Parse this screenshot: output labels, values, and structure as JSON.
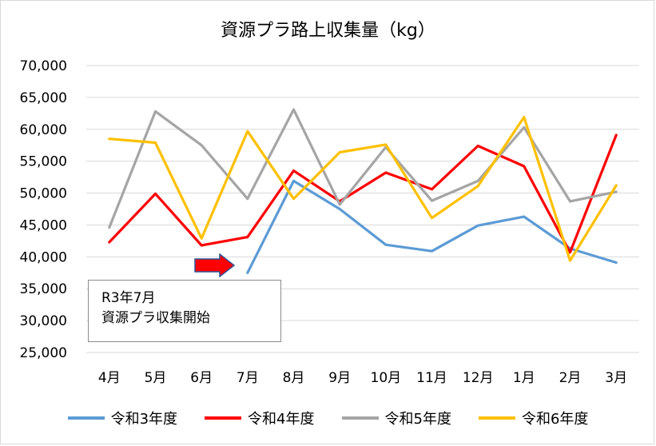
{
  "chart_data": {
    "type": "line",
    "title": "資源プラ路上収集量（kg）",
    "xlabel": "",
    "ylabel": "",
    "categories": [
      "4月",
      "5月",
      "6月",
      "7月",
      "8月",
      "9月",
      "10月",
      "11月",
      "12月",
      "1月",
      "2月",
      "3月"
    ],
    "ylim": [
      25000,
      70000
    ],
    "yticks": [
      25000,
      30000,
      35000,
      40000,
      45000,
      50000,
      55000,
      60000,
      65000,
      70000
    ],
    "ytick_labels": [
      "25,000",
      "30,000",
      "35,000",
      "40,000",
      "45,000",
      "50,000",
      "55,000",
      "60,000",
      "65,000",
      "70,000"
    ],
    "grid": true,
    "legend_position": "bottom",
    "series": [
      {
        "name": "令和3年度",
        "color": "#5b9bd5",
        "values": [
          null,
          null,
          null,
          37500,
          51900,
          47500,
          41900,
          40900,
          44900,
          46300,
          41300,
          39100
        ]
      },
      {
        "name": "令和4年度",
        "color": "#ff0000",
        "values": [
          42300,
          49900,
          41800,
          43100,
          53500,
          48700,
          53200,
          50600,
          57400,
          54200,
          40700,
          59100
        ]
      },
      {
        "name": "令和5年度",
        "color": "#a5a5a5",
        "values": [
          44600,
          62800,
          57500,
          49100,
          63100,
          48200,
          57200,
          48800,
          51900,
          60300,
          48700,
          50200
        ]
      },
      {
        "name": "令和6年度",
        "color": "#ffc000",
        "values": [
          58500,
          57900,
          42900,
          59700,
          49100,
          56400,
          57600,
          46100,
          51100,
          61900,
          39400,
          51200
        ]
      }
    ],
    "annotation": {
      "lines": [
        "R3年7月",
        "資源プラ収集開始"
      ],
      "arrow_color": "#ff0000"
    }
  }
}
